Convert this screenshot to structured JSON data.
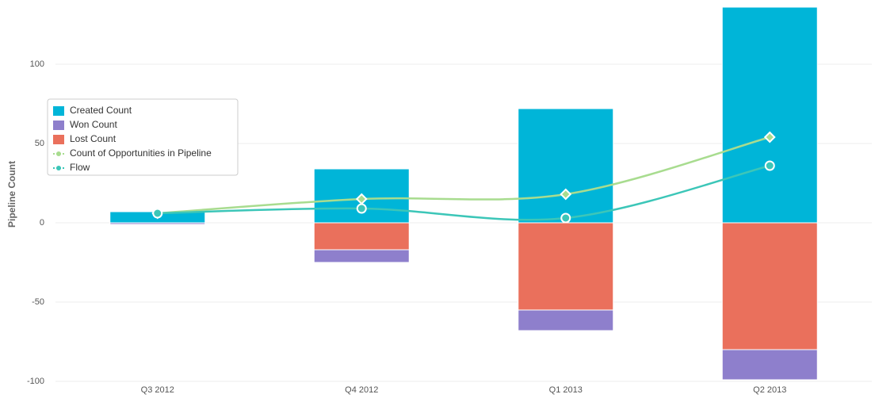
{
  "chart_data": {
    "type": "bar",
    "y_label": "Pipeline Count",
    "categories": [
      "Q3 2012",
      "Q4 2012",
      "Q1 2013",
      "Q2 2013"
    ],
    "series": [
      {
        "name": "Created Count",
        "color": "#00b5d8",
        "type": "bar",
        "values": [
          7,
          34,
          72,
          136
        ]
      },
      {
        "name": "Won Count",
        "color": "#8e7fcc",
        "type": "bar",
        "values": [
          -1,
          -8,
          -13,
          -19
        ]
      },
      {
        "name": "Lost Count",
        "color": "#ea705c",
        "type": "bar",
        "values": [
          0,
          -17,
          -55,
          -80
        ]
      },
      {
        "name": "Count of Opportunities in Pipeline",
        "color": "#a8dc8f",
        "type": "line",
        "marker": "diamond",
        "values": [
          6,
          15,
          18,
          54
        ]
      },
      {
        "name": "Flow",
        "color": "#3cc6b8",
        "type": "line",
        "marker": "circle",
        "values": [
          6,
          9,
          3,
          36
        ]
      }
    ],
    "ylim": [
      -100,
      140
    ],
    "yticks": [
      -100,
      -50,
      0,
      50,
      100
    ],
    "grid": true,
    "legend": "left"
  }
}
